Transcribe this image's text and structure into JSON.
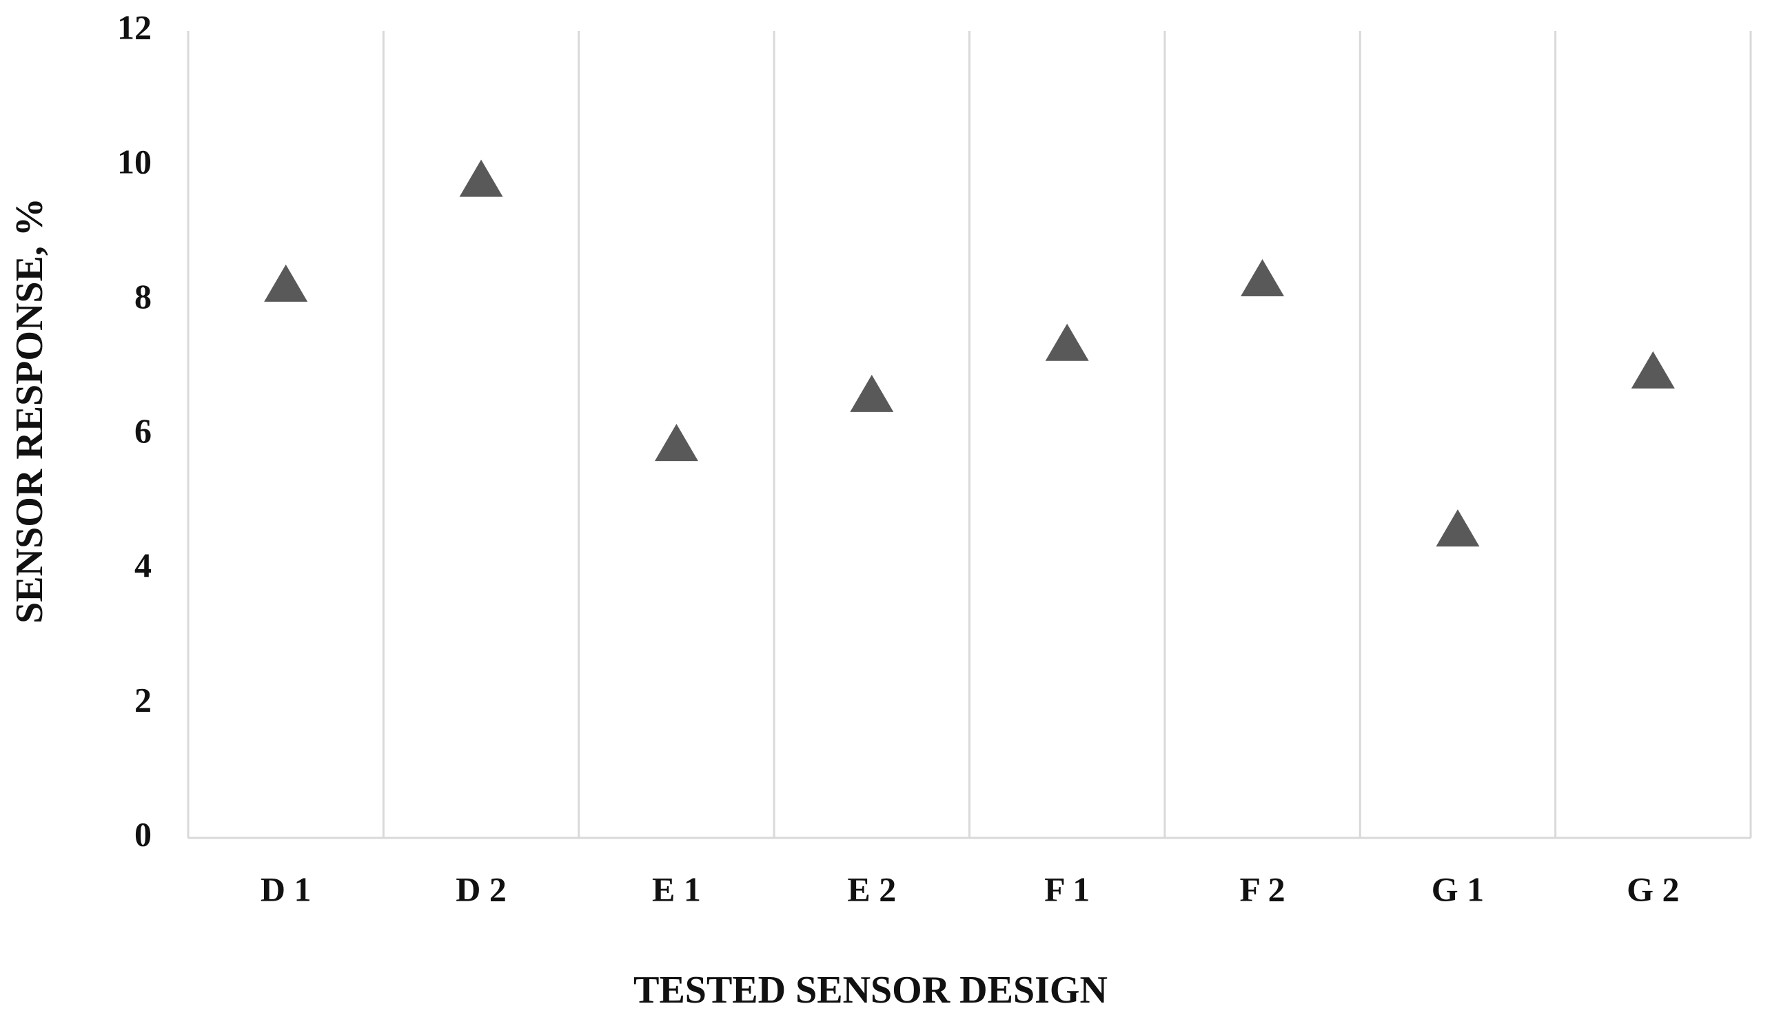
{
  "chart_data": {
    "type": "scatter",
    "x_label": "TESTED SENSOR DESIGN",
    "y_label": "SENSOR RESPONSE, %",
    "categories": [
      "D 1",
      "D 2",
      "E 1",
      "E 2",
      "F 1",
      "F 2",
      "G 1",
      "G 2"
    ],
    "values": [
      8.22,
      9.78,
      5.85,
      6.58,
      7.34,
      8.3,
      4.58,
      6.93
    ],
    "color": "#595959",
    "ylim": [
      0,
      12
    ],
    "yticks": [
      0,
      2,
      4,
      6,
      8,
      10,
      12
    ],
    "grid": true
  }
}
